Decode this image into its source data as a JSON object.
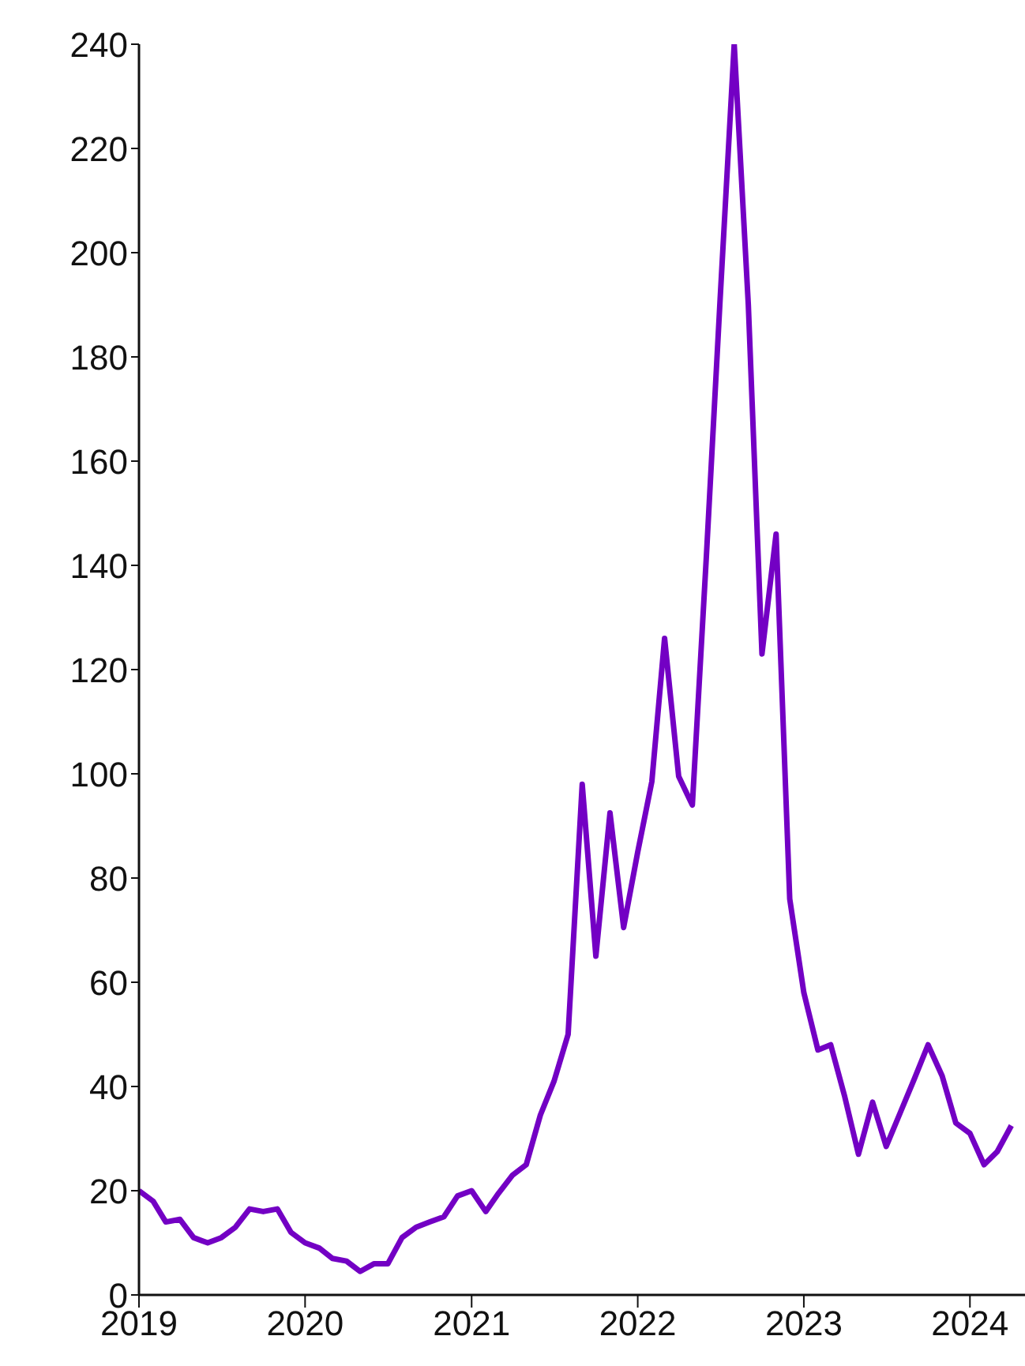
{
  "chart_data": {
    "type": "line",
    "x": [
      "2019-01",
      "2019-02",
      "2019-03",
      "2019-04",
      "2019-05",
      "2019-06",
      "2019-07",
      "2019-08",
      "2019-09",
      "2019-10",
      "2019-11",
      "2019-12",
      "2020-01",
      "2020-02",
      "2020-03",
      "2020-04",
      "2020-05",
      "2020-06",
      "2020-07",
      "2020-08",
      "2020-09",
      "2020-10",
      "2020-11",
      "2020-12",
      "2021-01",
      "2021-02",
      "2021-03",
      "2021-04",
      "2021-05",
      "2021-06",
      "2021-07",
      "2021-08",
      "2021-09",
      "2021-10",
      "2021-11",
      "2021-12",
      "2022-01",
      "2022-02",
      "2022-03",
      "2022-04",
      "2022-05",
      "2022-06",
      "2022-07",
      "2022-08",
      "2022-09",
      "2022-10",
      "2022-11",
      "2022-12",
      "2023-01",
      "2023-02",
      "2023-03",
      "2023-04",
      "2023-05",
      "2023-06",
      "2023-07",
      "2023-08",
      "2023-09",
      "2023-10",
      "2023-11",
      "2023-12",
      "2024-01",
      "2024-02",
      "2024-03",
      "2024-04"
    ],
    "series": [
      {
        "color": "#7300c4",
        "values": [
          20,
          18,
          14,
          14.5,
          11,
          10,
          11,
          13,
          16.5,
          16,
          16.5,
          12,
          10,
          9,
          7,
          6.5,
          4.5,
          6,
          6,
          11,
          13,
          14,
          15,
          19,
          20,
          16,
          19.5,
          23,
          25,
          34.5,
          41,
          50,
          98,
          65,
          92.5,
          70.5,
          85,
          98.5,
          126,
          99.5,
          94,
          142,
          191,
          240,
          190,
          123,
          146,
          76,
          58,
          47,
          48,
          38,
          27,
          37,
          28.5,
          35,
          41.5,
          48,
          42,
          33,
          31,
          25,
          27.5,
          32.5
        ]
      }
    ],
    "xlim": [
      "2019-01",
      "2024-05"
    ],
    "xticks": [
      {
        "value": "2019-01",
        "label": "2019"
      },
      {
        "value": "2020-01",
        "label": "2020"
      },
      {
        "value": "2021-01",
        "label": "2021"
      },
      {
        "value": "2022-01",
        "label": "2022"
      },
      {
        "value": "2023-01",
        "label": "2023"
      },
      {
        "value": "2024-01",
        "label": "2024"
      }
    ],
    "ylim": [
      0,
      240
    ],
    "yticks": [
      0,
      20,
      40,
      60,
      80,
      100,
      120,
      140,
      160,
      180,
      200,
      220,
      240
    ],
    "grid": false,
    "legend": false,
    "marker": "none",
    "line_style": "solid"
  }
}
